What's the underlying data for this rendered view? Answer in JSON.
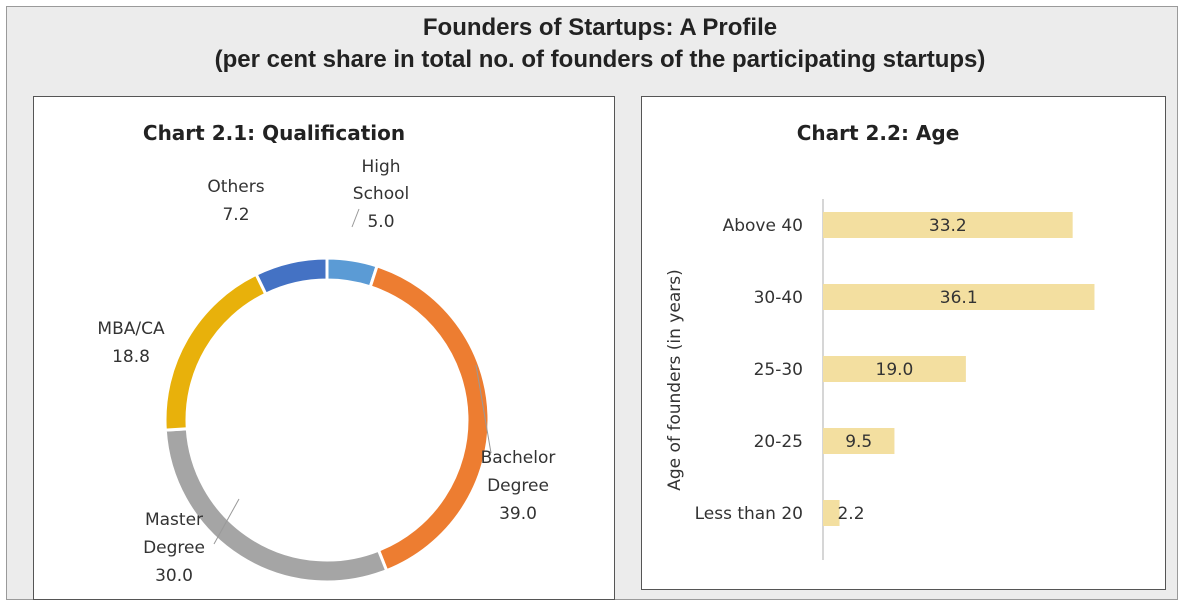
{
  "header": {
    "title": "Founders of Startups: A Profile",
    "subtitle": "(per cent share in total no. of founders of the participating startups)"
  },
  "chart_data": [
    {
      "type": "pie",
      "style": "donut",
      "title": "Chart 2.1: Qualification",
      "slices": [
        {
          "label_lines": [
            "High",
            "School"
          ],
          "value": 5.0,
          "display": "5.0",
          "color": "#5b9bd5"
        },
        {
          "label_lines": [
            "Bachelor",
            "Degree"
          ],
          "value": 39.0,
          "display": "39.0",
          "color": "#ed7d31"
        },
        {
          "label_lines": [
            "Master",
            "Degree"
          ],
          "value": 30.0,
          "display": "30.0",
          "color": "#a5a5a5"
        },
        {
          "label_lines": [
            "MBA/CA"
          ],
          "value": 18.8,
          "display": "18.8",
          "color": "#e8b10b"
        },
        {
          "label_lines": [
            "Others"
          ],
          "value": 7.2,
          "display": "7.2",
          "color": "#4472c4"
        }
      ]
    },
    {
      "type": "bar",
      "orientation": "horizontal",
      "title": "Chart 2.2: Age",
      "ylabel": "Age of founders (in years)",
      "categories": [
        "Above 40",
        "30-40",
        "25-30",
        "20-25",
        "Less than 20"
      ],
      "values": [
        33.2,
        36.1,
        19.0,
        9.5,
        2.2
      ],
      "display": [
        "33.2",
        "36.1",
        "19.0",
        "9.5",
        "2.2"
      ],
      "color": "#f3dfa0"
    }
  ]
}
